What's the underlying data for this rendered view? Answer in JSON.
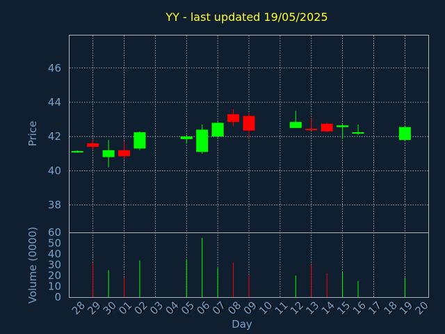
{
  "chart_data": {
    "title": "YY - last updated 19/05/2025",
    "price_panel": {
      "type": "candlestick",
      "ylabel": "Price",
      "ylim": [
        36.4,
        47.9
      ],
      "yticks": [
        38,
        40,
        42,
        44,
        46
      ]
    },
    "volume_panel": {
      "type": "bar",
      "ylabel": "Volume (0000)",
      "ylim": [
        0,
        60
      ],
      "yticks": [
        0,
        10,
        20,
        30,
        40,
        50,
        60
      ]
    },
    "xlabel": "Day",
    "categories": [
      "28",
      "29",
      "30",
      "01",
      "02",
      "03",
      "04",
      "05",
      "06",
      "07",
      "08",
      "09",
      "10",
      "11",
      "12",
      "13",
      "14",
      "15",
      "16",
      "17",
      "18",
      "19",
      "20"
    ],
    "candles": [
      {
        "day": "28",
        "open": 41.1,
        "high": 41.2,
        "low": 41.05,
        "close": 41.15,
        "volume": 0
      },
      {
        "day": "29",
        "open": 41.6,
        "high": 41.85,
        "low": 41.2,
        "close": 41.4,
        "volume": 32
      },
      {
        "day": "30",
        "open": 40.8,
        "high": 41.8,
        "low": 40.2,
        "close": 41.2,
        "volume": 25
      },
      {
        "day": "01",
        "open": 41.2,
        "high": 41.7,
        "low": 40.7,
        "close": 40.85,
        "volume": 18
      },
      {
        "day": "02",
        "open": 41.3,
        "high": 42.3,
        "low": 41.2,
        "close": 42.25,
        "volume": 34
      },
      {
        "day": "05",
        "open": 41.85,
        "high": 42.1,
        "low": 41.6,
        "close": 42.0,
        "volume": 35
      },
      {
        "day": "06",
        "open": 41.1,
        "high": 42.7,
        "low": 41.0,
        "close": 42.4,
        "volume": 55
      },
      {
        "day": "07",
        "open": 42.0,
        "high": 42.85,
        "low": 41.95,
        "close": 42.8,
        "volume": 27
      },
      {
        "day": "08",
        "open": 43.3,
        "high": 43.6,
        "low": 42.6,
        "close": 42.85,
        "volume": 32
      },
      {
        "day": "09",
        "open": 43.2,
        "high": 43.4,
        "low": 41.9,
        "close": 42.35,
        "volume": 20
      },
      {
        "day": "12",
        "open": 42.5,
        "high": 43.5,
        "low": 42.5,
        "close": 42.85,
        "volume": 20
      },
      {
        "day": "13",
        "open": 42.45,
        "high": 43.1,
        "low": 42.4,
        "close": 42.4,
        "volume": 30
      },
      {
        "day": "14",
        "open": 42.75,
        "high": 42.8,
        "low": 42.25,
        "close": 42.3,
        "volume": 22
      },
      {
        "day": "15",
        "open": 42.55,
        "high": 42.7,
        "low": 41.9,
        "close": 42.65,
        "volume": 23
      },
      {
        "day": "16",
        "open": 42.2,
        "high": 42.7,
        "low": 42.1,
        "close": 42.25,
        "volume": 15
      },
      {
        "day": "19",
        "open": 41.8,
        "high": 42.6,
        "low": 41.75,
        "close": 42.55,
        "volume": 18
      }
    ],
    "colors": {
      "background": "#0f1f2f",
      "up": "#00ff00",
      "down": "#ff0000",
      "title": "#ffff33",
      "axis_text": "#7aa0c8",
      "grid": "#c8c8c8"
    },
    "grid": true
  }
}
